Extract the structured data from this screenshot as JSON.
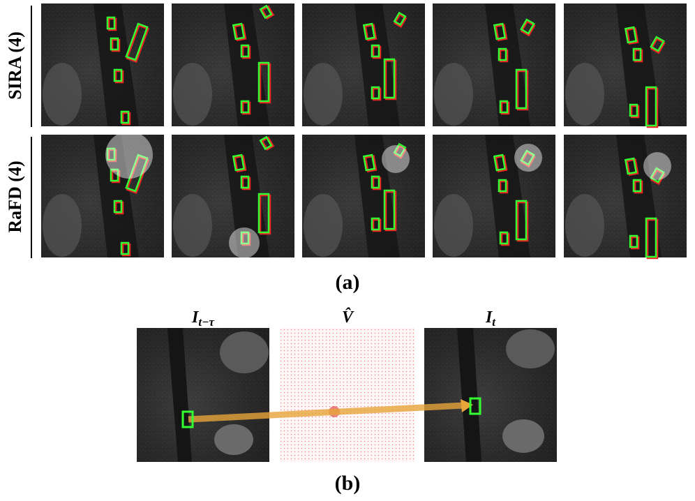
{
  "panel_a": {
    "row_labels": [
      "SIRA (4)",
      "RaFD (4)"
    ],
    "caption": "(a)"
  },
  "panel_b": {
    "labels": [
      {
        "base": "I",
        "sub": "t−τ"
      },
      {
        "base": "V̂"
      },
      {
        "base": "I",
        "sub": "t"
      }
    ],
    "caption": "(b)"
  }
}
